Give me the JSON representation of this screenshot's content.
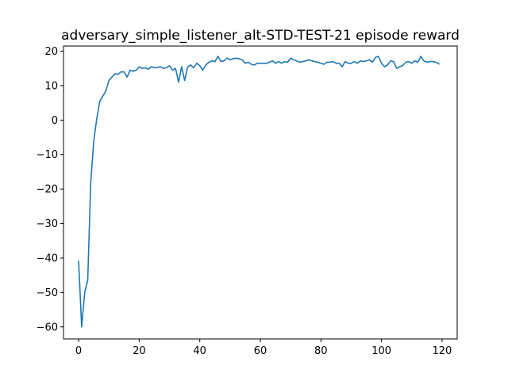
{
  "chart_data": {
    "type": "line",
    "title": "adversary_simple_listener_alt-STD-TEST-21 episode reward",
    "xlabel": "",
    "ylabel": "",
    "xlim": [
      -5,
      125
    ],
    "ylim": [
      -63.5,
      21.5
    ],
    "xticks": [
      0,
      20,
      40,
      60,
      80,
      100,
      120
    ],
    "yticks": [
      -60,
      -50,
      -40,
      -30,
      -20,
      -10,
      0,
      10,
      20
    ],
    "grid": false,
    "legend": "none",
    "series": [
      {
        "color": "#1f77b4",
        "x": [
          0,
          1,
          2,
          3,
          4,
          5,
          6,
          7,
          8,
          9,
          10,
          11,
          12,
          13,
          14,
          15,
          16,
          17,
          18,
          19,
          20,
          21,
          22,
          23,
          24,
          25,
          26,
          27,
          28,
          29,
          30,
          31,
          32,
          33,
          34,
          35,
          36,
          37,
          38,
          39,
          40,
          41,
          42,
          43,
          44,
          45,
          46,
          47,
          48,
          49,
          50,
          51,
          52,
          53,
          54,
          55,
          56,
          57,
          58,
          59,
          60,
          61,
          62,
          63,
          64,
          65,
          66,
          67,
          68,
          69,
          70,
          71,
          72,
          73,
          74,
          75,
          76,
          77,
          78,
          79,
          80,
          81,
          82,
          83,
          84,
          85,
          86,
          87,
          88,
          89,
          90,
          91,
          92,
          93,
          94,
          95,
          96,
          97,
          98,
          99,
          100,
          101,
          102,
          103,
          104,
          105,
          106,
          107,
          108,
          109,
          110,
          111,
          112,
          113,
          114,
          115,
          116,
          117,
          118,
          119
        ],
        "values": [
          -41,
          -60,
          -50,
          -46.5,
          -18,
          -6,
          0.5,
          5.5,
          7,
          8.5,
          11.5,
          12.5,
          13.5,
          13.3,
          14,
          14,
          12.5,
          14.5,
          14.2,
          14.5,
          15.5,
          15,
          15.2,
          14.8,
          15.5,
          15.2,
          15.3,
          15.5,
          15,
          15.2,
          15.8,
          14.5,
          15,
          11,
          15.5,
          11.5,
          15.5,
          16,
          15.2,
          16.5,
          15.8,
          14.5,
          16,
          16.8,
          17.2,
          17,
          18.5,
          17,
          17.2,
          18,
          17.5,
          17.8,
          18,
          17.8,
          17.5,
          16.5,
          16.8,
          16.2,
          16,
          16.5,
          16.5,
          16.5,
          16.5,
          16.8,
          17.2,
          16.5,
          17,
          16.5,
          17,
          16.8,
          18,
          17.5,
          17.2,
          16.8,
          17,
          17.2,
          17.5,
          17.2,
          17,
          16.8,
          16.5,
          16.2,
          16.8,
          16.8,
          17,
          16.5,
          16.5,
          15.5,
          17,
          16.5,
          16.5,
          17,
          16.5,
          17.2,
          17,
          17.2,
          17.5,
          16.8,
          18.2,
          18.5,
          16.5,
          15.5,
          16,
          17.2,
          17,
          15,
          15.5,
          15.8,
          16.8,
          17,
          16.5,
          17.2,
          16.8,
          18.5,
          17.2,
          16.8,
          17,
          17,
          16.8,
          16.3
        ]
      }
    ]
  }
}
